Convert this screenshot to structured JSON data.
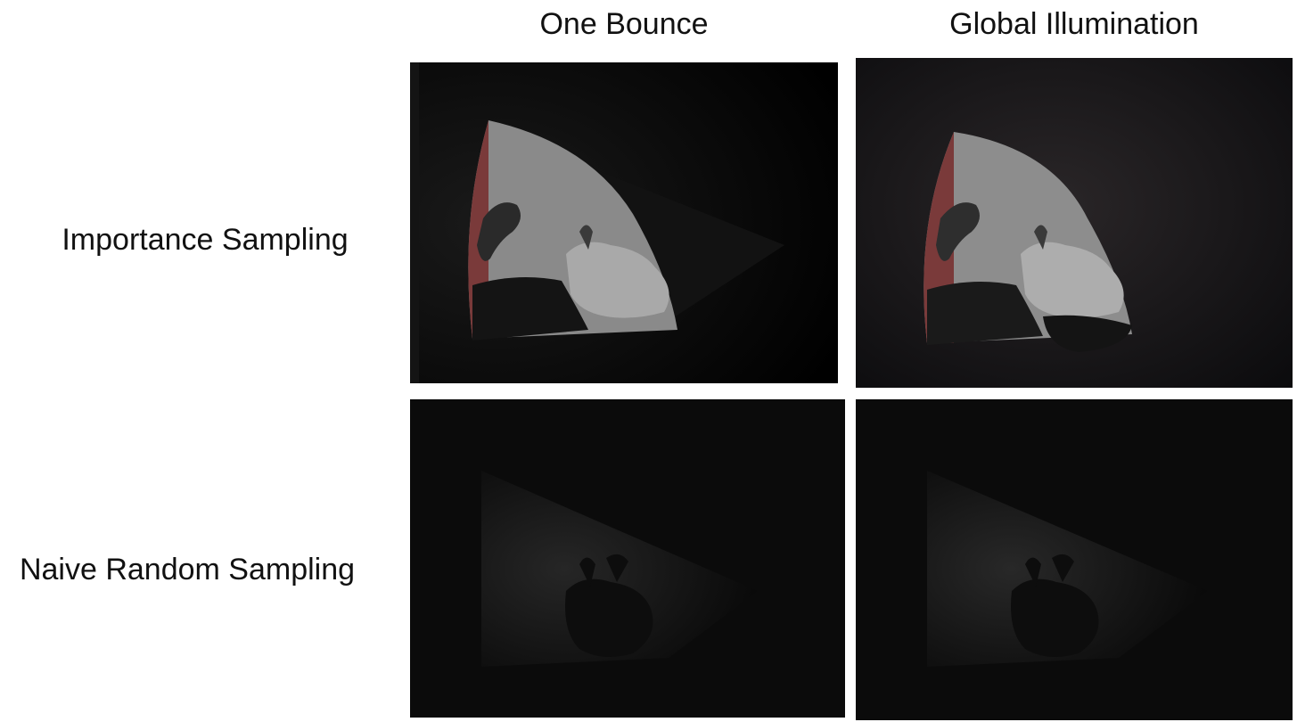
{
  "columns": [
    {
      "label": "One Bounce"
    },
    {
      "label": "Global Illumination"
    }
  ],
  "rows": [
    {
      "label": "Importance Sampling"
    },
    {
      "label": "Naive Random Sampling"
    }
  ],
  "images": [
    {
      "row": "Importance Sampling",
      "column": "One Bounce",
      "content": "bunny-render"
    },
    {
      "row": "Importance Sampling",
      "column": "Global Illumination",
      "content": "bunny-render"
    },
    {
      "row": "Naive Random Sampling",
      "column": "One Bounce",
      "content": "bunny-render"
    },
    {
      "row": "Naive Random Sampling",
      "column": "Global Illumination",
      "content": "bunny-render"
    }
  ],
  "colors": {
    "background": "#ffffff",
    "panel": "#000000",
    "red_wall": "#7a3a3a"
  }
}
